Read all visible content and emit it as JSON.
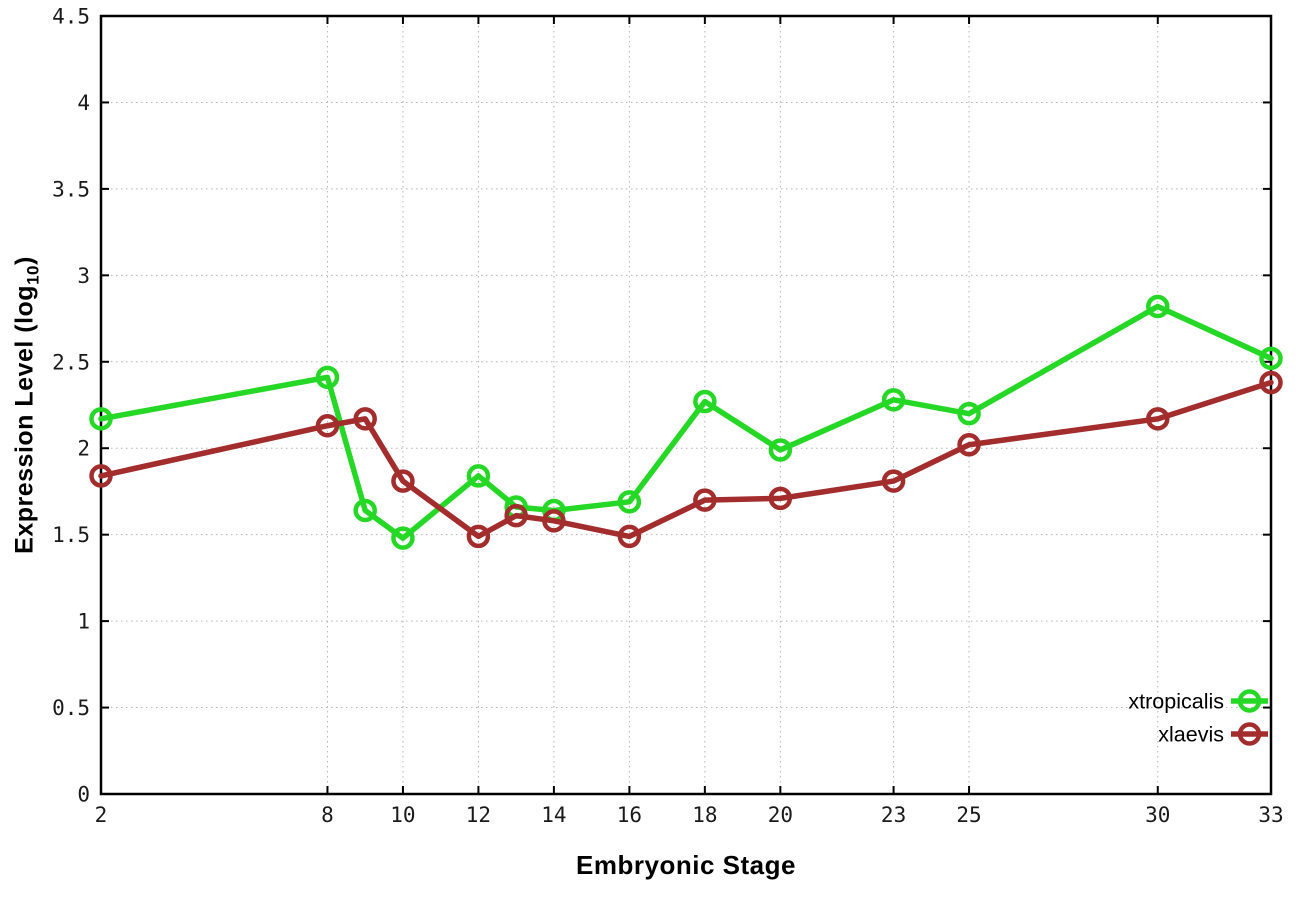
{
  "chart_data": {
    "type": "line",
    "title": "",
    "xlabel": "Embryonic Stage",
    "ylabel": "Expression Level (log10)",
    "ylabel_parts": {
      "main": "Expression Level (log",
      "sub": "10",
      "end": ")"
    },
    "x": [
      2,
      8,
      9,
      10,
      12,
      13,
      14,
      16,
      18,
      20,
      23,
      25,
      30,
      33
    ],
    "series": [
      {
        "name": "xtropicalis",
        "color": "#25d825",
        "values": [
          2.17,
          2.41,
          1.64,
          1.48,
          1.84,
          1.66,
          1.64,
          1.69,
          2.27,
          1.99,
          2.28,
          2.2,
          2.82,
          2.52
        ]
      },
      {
        "name": "xlaevis",
        "color": "#a32c2c",
        "values": [
          1.84,
          2.13,
          2.17,
          1.81,
          1.49,
          1.61,
          1.58,
          1.49,
          1.7,
          1.71,
          1.81,
          2.02,
          2.17,
          2.38
        ]
      }
    ],
    "x_ticks": [
      2,
      8,
      10,
      12,
      14,
      16,
      18,
      20,
      23,
      25,
      30,
      33
    ],
    "y_ticks": [
      0,
      0.5,
      1,
      1.5,
      2,
      2.5,
      3,
      3.5,
      4,
      4.5
    ],
    "xlim": [
      2,
      33
    ],
    "ylim": [
      0,
      4.5
    ],
    "grid": true,
    "legend_position": "bottom-right",
    "marker": "open-circle",
    "colors": {
      "axis": "#000000",
      "grid": "#b4b4b4",
      "background": "#ffffff",
      "tick_text": "#1a1a1a"
    }
  }
}
